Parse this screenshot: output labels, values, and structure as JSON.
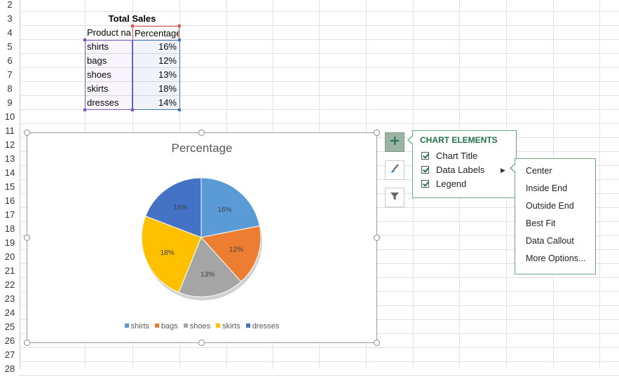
{
  "sheet": {
    "row_numbers": [
      "2",
      "3",
      "4",
      "5",
      "6",
      "7",
      "8",
      "9",
      "10",
      "11",
      "12",
      "13",
      "14",
      "15",
      "16",
      "17",
      "18",
      "19",
      "20",
      "21",
      "22",
      "23",
      "24",
      "25",
      "26",
      "27",
      "28"
    ],
    "table_title": "Total Sales",
    "headers": [
      "Product na",
      "Percentage"
    ],
    "rows": [
      {
        "product": "shirts",
        "percentage": "16%"
      },
      {
        "product": "bags",
        "percentage": "12%"
      },
      {
        "product": "shoes",
        "percentage": "13%"
      },
      {
        "product": "skirts",
        "percentage": "18%"
      },
      {
        "product": "dresses",
        "percentage": "14%"
      }
    ]
  },
  "chart_data": {
    "type": "pie",
    "title": "Percentage",
    "categories": [
      "shirts",
      "bags",
      "shoes",
      "skirts",
      "dresses"
    ],
    "values": [
      16,
      12,
      13,
      18,
      14
    ],
    "labels": [
      "16%",
      "12%",
      "13%",
      "18%",
      "14%"
    ],
    "colors": [
      "#5b9bd5",
      "#ed7d31",
      "#a5a5a5",
      "#ffc000",
      "#4472c4"
    ],
    "legend_position": "bottom"
  },
  "chart_elements": {
    "title": "CHART ELEMENTS",
    "items": [
      {
        "label": "Chart Title",
        "checked": true
      },
      {
        "label": "Data Labels",
        "checked": true,
        "has_submenu": true
      },
      {
        "label": "Legend",
        "checked": true
      }
    ]
  },
  "data_labels_menu": {
    "items": [
      "Center",
      "Inside End",
      "Outside End",
      "Best Fit",
      "Data Callout",
      "More Options..."
    ]
  },
  "side_buttons": {
    "icons": [
      "plus-icon",
      "brush-icon",
      "filter-icon"
    ]
  },
  "colors": {
    "accent": "#217346",
    "purple_range": "#7e57c2",
    "blue_range": "#4472c4",
    "red_range": "#e05050"
  }
}
